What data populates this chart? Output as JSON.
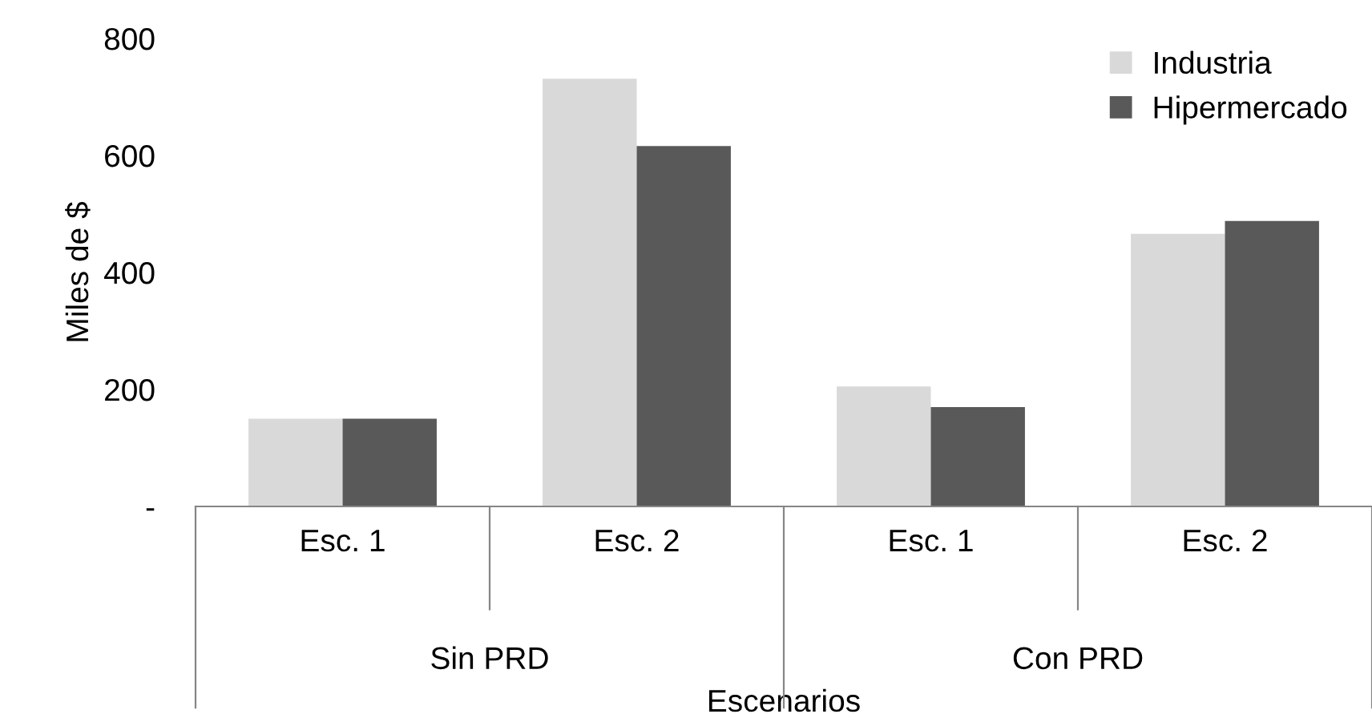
{
  "chart_data": {
    "type": "bar",
    "xlabel": "Escenarios",
    "ylabel": "Miles de $",
    "categories": [
      "Esc. 1",
      "Esc. 2",
      "Esc. 1",
      "Esc. 2"
    ],
    "series": [
      {
        "name": "Industria",
        "color": "#d9d9d9",
        "values": [
          150,
          731,
          205,
          466
        ]
      },
      {
        "name": "Hipermercado",
        "color": "#595959",
        "values": [
          150,
          616,
          170,
          488
        ]
      }
    ],
    "annotations": [
      "Sin PRD",
      "Con PRD"
    ],
    "ylim": [
      0,
      800
    ],
    "yticks": [
      {
        "value": 0,
        "label": "-"
      },
      200,
      400,
      600,
      800
    ],
    "grid": false,
    "legend": "top right",
    "marker": "square"
  }
}
